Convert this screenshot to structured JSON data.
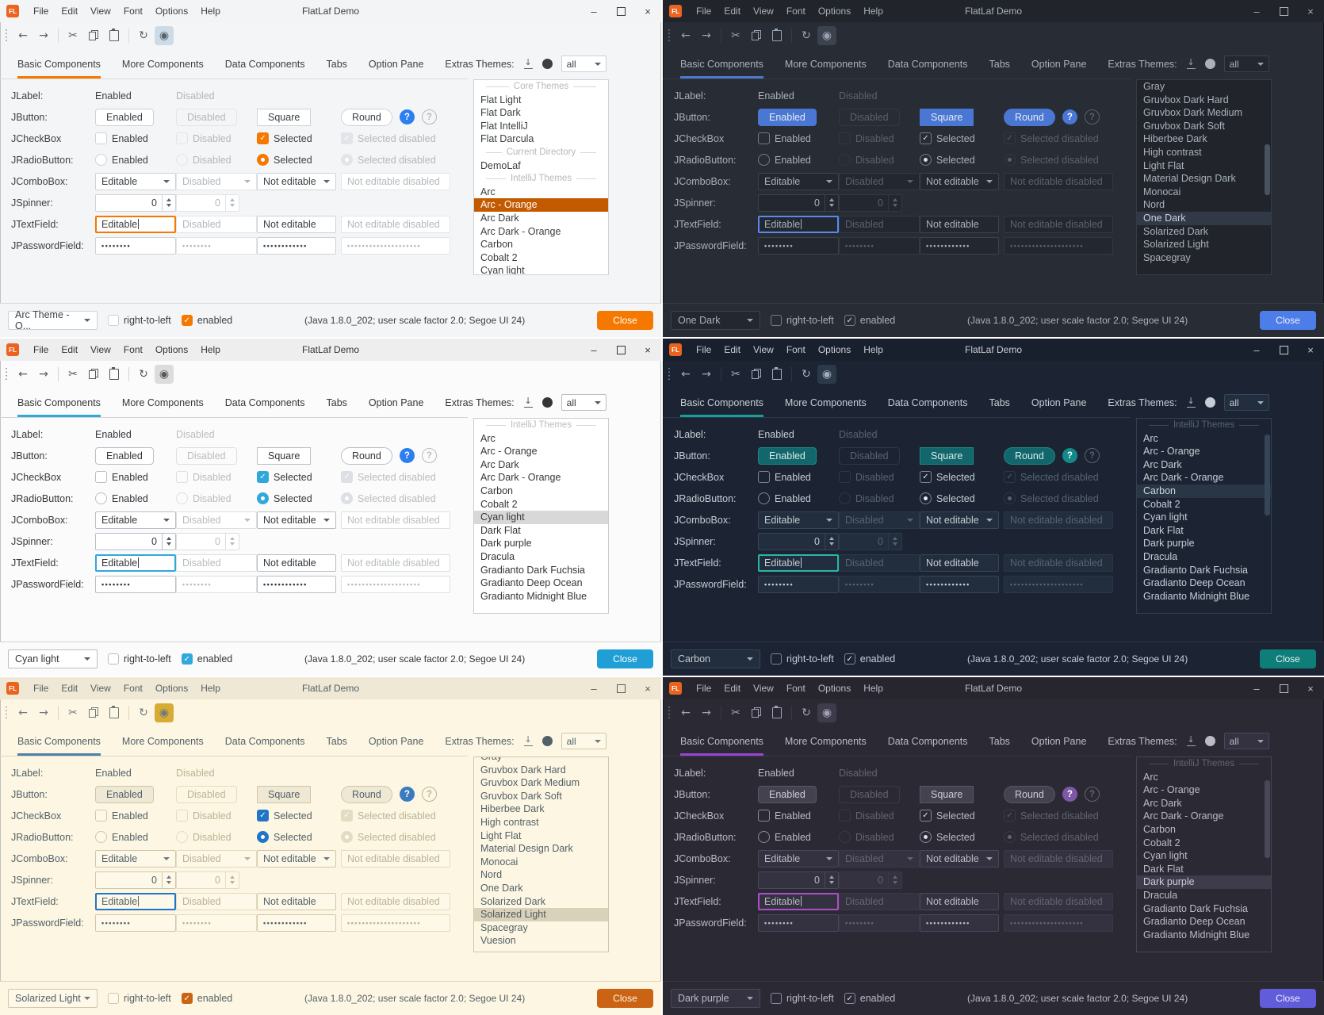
{
  "shared": {
    "title": "FlatLaf Demo",
    "logo": "FL",
    "menus": [
      "File",
      "Edit",
      "View",
      "Font",
      "Options",
      "Help"
    ],
    "window_controls": {
      "minimize": "–",
      "close": "×"
    },
    "toolbar_icons": [
      "back",
      "forward",
      "cut",
      "copy",
      "paste",
      "refresh",
      "show"
    ],
    "glyphs": {
      "back": "←",
      "forward": "→",
      "cut": "✂",
      "refresh": "↻",
      "eye": "◉",
      "download_arrow": "↓"
    },
    "tabs": [
      "Basic Components",
      "More Components",
      "Data Components",
      "Tabs",
      "Option Pane",
      "Extras"
    ],
    "selected_tab": "Basic Components",
    "themes_label": "Themes:",
    "themes_filter": "all",
    "row_labels": {
      "jlabel": "JLabel:",
      "jbutton": "JButton:",
      "jcheckbox": "JCheckBox",
      "jradiobutton": "JRadioButton:",
      "jcombobox": "JComboBox:",
      "jspinner": "JSpinner:",
      "jtextfield": "JTextField:",
      "jpasswordfield": "JPasswordField:"
    },
    "strings": {
      "enabled": "Enabled",
      "disabled": "Disabled",
      "square": "Square",
      "round": "Round",
      "help": "?",
      "selected": "Selected",
      "selected_disabled": "Selected disabled",
      "editable": "Editable",
      "not_editable": "Not editable",
      "not_editable_disabled": "Not editable disabled",
      "zero": "0",
      "dots8": "••••••••",
      "dots12": "••••••••••••",
      "dots20": "••••••••••••••••••••"
    },
    "statusbar": {
      "rtl": "right-to-left",
      "enabled": "enabled",
      "status": "(Java 1.8.0_202;  user scale factor 2.0;  Segoe UI 24)",
      "close": "Close"
    }
  },
  "panels": [
    {
      "id": "arc-orange",
      "mode": "light",
      "accent_buttons": false,
      "theme_combo": "Arc Theme - O...",
      "list_clipped_top": false,
      "scrollbar": null,
      "list": [
        {
          "type": "header",
          "label": "Core Themes"
        },
        {
          "type": "item",
          "label": "Flat Light"
        },
        {
          "type": "item",
          "label": "Flat Dark"
        },
        {
          "type": "item",
          "label": "Flat IntelliJ"
        },
        {
          "type": "item",
          "label": "Flat Darcula"
        },
        {
          "type": "header",
          "label": "Current Directory"
        },
        {
          "type": "item",
          "label": "DemoLaf"
        },
        {
          "type": "header",
          "label": "IntelliJ Themes"
        },
        {
          "type": "item",
          "label": "Arc"
        },
        {
          "type": "item",
          "label": "Arc - Orange",
          "selected": true
        },
        {
          "type": "item",
          "label": "Arc Dark"
        },
        {
          "type": "item",
          "label": "Arc Dark - Orange"
        },
        {
          "type": "item",
          "label": "Carbon"
        },
        {
          "type": "item",
          "label": "Cobalt 2"
        },
        {
          "type": "item",
          "label": "Cyan light"
        }
      ],
      "colors": {
        "bg": "#f4f5f6",
        "titlebar": "#f3f4f5",
        "text": "#3c4043",
        "muted": "#b4b8bc",
        "sep": "#d7dadd",
        "field_bg": "#ffffff",
        "field_border": "#cdd2d8",
        "disabled_border": "#e1e5e9",
        "btn_bg": "#ffffff",
        "btn_border": "#cdd2d8",
        "primary_bg": "#ffffff",
        "primary_border": "#cdd2d8",
        "primary_text": "#3c4043",
        "accent": "#f57900",
        "focus": "#f57900",
        "check": "#f57900",
        "check_outline": "#cdd2d8",
        "check_mark": "#ffffff",
        "help": "#2d7ff0",
        "sel_bg": "#c45a00",
        "sel_text": "#ffffff",
        "close": "#f57900",
        "close_text": "#ffffff",
        "eye_bg": "#ccdbe8",
        "icon": "#5b6269",
        "enabled_check": "#f57900",
        "list_bg": "#ffffff",
        "list_border": "#cdd2d8",
        "thumb": "#c9ced4"
      }
    },
    {
      "id": "one-dark",
      "mode": "dark",
      "accent_buttons": true,
      "theme_combo": "One Dark",
      "list_clipped_top": false,
      "scrollbar": {
        "top_pct": 33,
        "height_pct": 26
      },
      "list": [
        {
          "type": "item",
          "label": "Gray"
        },
        {
          "type": "item",
          "label": "Gruvbox Dark Hard"
        },
        {
          "type": "item",
          "label": "Gruvbox Dark Medium"
        },
        {
          "type": "item",
          "label": "Gruvbox Dark Soft"
        },
        {
          "type": "item",
          "label": "Hiberbee Dark"
        },
        {
          "type": "item",
          "label": "High contrast"
        },
        {
          "type": "item",
          "label": "Light Flat"
        },
        {
          "type": "item",
          "label": "Material Design Dark"
        },
        {
          "type": "item",
          "label": "Monocai"
        },
        {
          "type": "item",
          "label": "Nord"
        },
        {
          "type": "item",
          "label": "One Dark",
          "selected": true
        },
        {
          "type": "item",
          "label": "Solarized Dark"
        },
        {
          "type": "item",
          "label": "Solarized Light"
        },
        {
          "type": "item",
          "label": "Spacegray"
        }
      ],
      "colors": {
        "bg": "#282c34",
        "titlebar": "#21252b",
        "text": "#a9b1bd",
        "muted": "#5a626e",
        "sep": "#373c44",
        "field_bg": "#23272f",
        "field_border": "#3c424c",
        "disabled_border": "#323842",
        "btn_bg": "#23272f",
        "btn_border": "#3c424c",
        "primary_bg": "#4a77d4",
        "primary_border": "#4a77d4",
        "primary_text": "#e8ecf2",
        "accent": "#4d78cc",
        "focus": "#568af2",
        "check": "#4d78cc",
        "check_outline": "#747c88",
        "check_mark": "#d7dde6",
        "help": "#4a77d4",
        "sel_bg": "#323946",
        "sel_text": "#c7cedb",
        "close": "#4d7de8",
        "close_text": "#f0f3f8",
        "eye_bg": "#3d434e",
        "icon": "#9aa2b0",
        "enabled_check": "#4d78cc",
        "list_bg": "#21252b",
        "list_border": "#363c45",
        "thumb": "#4a5160"
      }
    },
    {
      "id": "cyan-light",
      "mode": "light",
      "accent_buttons": false,
      "theme_combo": "Cyan light",
      "list_clipped_top": false,
      "scrollbar": null,
      "list": [
        {
          "type": "header",
          "label": "IntelliJ Themes"
        },
        {
          "type": "item",
          "label": "Arc"
        },
        {
          "type": "item",
          "label": "Arc - Orange"
        },
        {
          "type": "item",
          "label": "Arc Dark"
        },
        {
          "type": "item",
          "label": "Arc Dark - Orange"
        },
        {
          "type": "item",
          "label": "Carbon"
        },
        {
          "type": "item",
          "label": "Cobalt 2"
        },
        {
          "type": "item",
          "label": "Cyan light",
          "selected": true
        },
        {
          "type": "item",
          "label": "Dark Flat"
        },
        {
          "type": "item",
          "label": "Dark purple"
        },
        {
          "type": "item",
          "label": "Dracula"
        },
        {
          "type": "item",
          "label": "Gradianto Dark Fuchsia"
        },
        {
          "type": "item",
          "label": "Gradianto Deep Ocean"
        },
        {
          "type": "item",
          "label": "Gradianto Midnight Blue"
        }
      ],
      "colors": {
        "bg": "#fbfbfb",
        "titlebar": "#eeeeee",
        "text": "#333639",
        "muted": "#b9bcbf",
        "sep": "#d4d4d4",
        "field_bg": "#ffffff",
        "field_border": "#b9bfc6",
        "disabled_border": "#dcdfe3",
        "btn_bg": "#ffffff",
        "btn_border": "#b9bfc6",
        "primary_bg": "#ffffff",
        "primary_border": "#b9bfc6",
        "primary_text": "#333639",
        "accent": "#2fa8dc",
        "focus": "#2fa8dc",
        "check": "#2fa8dc",
        "check_outline": "#b9bfc6",
        "check_mark": "#ffffff",
        "help": "#2d7ff0",
        "sel_bg": "#d8d8d8",
        "sel_text": "#333639",
        "close": "#1f9fd6",
        "close_text": "#ffffff",
        "eye_bg": "#dcdcdc",
        "icon": "#55595e",
        "enabled_check": "#2fa8dc",
        "list_bg": "#ffffff",
        "list_border": "#c9ccd0",
        "thumb": "#cccccc"
      }
    },
    {
      "id": "carbon",
      "mode": "dark",
      "accent_buttons": true,
      "theme_combo": "Carbon",
      "list_clipped_top": false,
      "scrollbar": {
        "top_pct": 8,
        "height_pct": 42
      },
      "list": [
        {
          "type": "header",
          "label": "IntelliJ Themes"
        },
        {
          "type": "item",
          "label": "Arc"
        },
        {
          "type": "item",
          "label": "Arc - Orange"
        },
        {
          "type": "item",
          "label": "Arc Dark"
        },
        {
          "type": "item",
          "label": "Arc Dark - Orange"
        },
        {
          "type": "item",
          "label": "Carbon",
          "selected": true
        },
        {
          "type": "item",
          "label": "Cobalt 2"
        },
        {
          "type": "item",
          "label": "Cyan light"
        },
        {
          "type": "item",
          "label": "Dark Flat"
        },
        {
          "type": "item",
          "label": "Dark purple"
        },
        {
          "type": "item",
          "label": "Dracula"
        },
        {
          "type": "item",
          "label": "Gradianto Dark Fuchsia"
        },
        {
          "type": "item",
          "label": "Gradianto Deep Ocean"
        },
        {
          "type": "item",
          "label": "Gradianto Midnight Blue"
        }
      ],
      "colors": {
        "bg": "#1c2433",
        "titlebar": "#19202d",
        "text": "#c6cdd6",
        "muted": "#576372",
        "sep": "#2b3747",
        "field_bg": "#222d3d",
        "field_border": "#35455a",
        "disabled_border": "#2b3848",
        "btn_bg": "#222d3d",
        "btn_border": "#35455a",
        "primary_bg": "#11676b",
        "primary_border": "#1c8a84",
        "primary_text": "#dce8e8",
        "accent": "#16a09a",
        "focus": "#29b6aa",
        "check": "#16a09a",
        "check_outline": "#7b8694",
        "check_mark": "#e6ecf2",
        "help": "#138a8a",
        "sel_bg": "#293645",
        "sel_text": "#cdd5de",
        "close": "#0f7e79",
        "close_text": "#e8f2f1",
        "eye_bg": "#2b3949",
        "icon": "#a3aebb",
        "enabled_check": "#16a09a",
        "list_bg": "#1c2433",
        "list_border": "#314050",
        "thumb": "#374656"
      }
    },
    {
      "id": "solarized-light",
      "mode": "light",
      "accent_buttons": false,
      "theme_combo": "Solarized Light",
      "list_clipped_top": true,
      "scrollbar": null,
      "list": [
        {
          "type": "item",
          "label": "Gray"
        },
        {
          "type": "item",
          "label": "Gruvbox Dark Hard"
        },
        {
          "type": "item",
          "label": "Gruvbox Dark Medium"
        },
        {
          "type": "item",
          "label": "Gruvbox Dark Soft"
        },
        {
          "type": "item",
          "label": "Hiberbee Dark"
        },
        {
          "type": "item",
          "label": "High contrast"
        },
        {
          "type": "item",
          "label": "Light Flat"
        },
        {
          "type": "item",
          "label": "Material Design Dark"
        },
        {
          "type": "item",
          "label": "Monocai"
        },
        {
          "type": "item",
          "label": "Nord"
        },
        {
          "type": "item",
          "label": "One Dark"
        },
        {
          "type": "item",
          "label": "Solarized Dark"
        },
        {
          "type": "item",
          "label": "Solarized Light",
          "selected": true
        },
        {
          "type": "item",
          "label": "Spacegray"
        },
        {
          "type": "item",
          "label": "Vuesion"
        }
      ],
      "colors": {
        "bg": "#fdf6e3",
        "titlebar": "#eee8d5",
        "text": "#536166",
        "muted": "#bcb394",
        "sep": "#ddd5bc",
        "field_bg": "#fdf8e8",
        "field_border": "#d2c8a8",
        "disabled_border": "#e4dcc2",
        "btn_bg": "#eee8d5",
        "btn_border": "#cfc6a8",
        "primary_bg": "#eee8d5",
        "primary_border": "#cfc6a8",
        "primary_text": "#536166",
        "accent": "#4e81a8",
        "focus": "#2075c7",
        "check": "#2075c7",
        "check_outline": "#d2c8a8",
        "check_mark": "#ffffff",
        "help": "#3a7bbf",
        "sel_bg": "#d9d2ba",
        "sel_text": "#50575a",
        "close": "#ca6414",
        "close_text": "#fdf6e3",
        "eye_bg": "#d8ab35",
        "icon": "#6f7a7c",
        "enabled_check": "#ca6414",
        "list_bg": "#fdf6e3",
        "list_border": "#d0c7a8",
        "thumb": "#d5ccae"
      }
    },
    {
      "id": "dark-purple",
      "mode": "dark",
      "accent_buttons": true,
      "theme_combo": "Dark purple",
      "list_clipped_top": false,
      "scrollbar": {
        "top_pct": 12,
        "height_pct": 40
      },
      "list": [
        {
          "type": "header",
          "label": "IntelliJ Themes"
        },
        {
          "type": "item",
          "label": "Arc"
        },
        {
          "type": "item",
          "label": "Arc - Orange"
        },
        {
          "type": "item",
          "label": "Arc Dark"
        },
        {
          "type": "item",
          "label": "Arc Dark - Orange"
        },
        {
          "type": "item",
          "label": "Carbon"
        },
        {
          "type": "item",
          "label": "Cobalt 2"
        },
        {
          "type": "item",
          "label": "Cyan light"
        },
        {
          "type": "item",
          "label": "Dark Flat"
        },
        {
          "type": "item",
          "label": "Dark purple",
          "selected": true
        },
        {
          "type": "item",
          "label": "Dracula"
        },
        {
          "type": "item",
          "label": "Gradianto Dark Fuchsia"
        },
        {
          "type": "item",
          "label": "Gradianto Deep Ocean"
        },
        {
          "type": "item",
          "label": "Gradianto Midnight Blue"
        }
      ],
      "colors": {
        "bg": "#2b2a34",
        "titlebar": "#27262f",
        "text": "#bdb9c6",
        "muted": "#676272",
        "sep": "#3b3846",
        "field_bg": "#343240",
        "field_border": "#4b4759",
        "disabled_border": "#3b3847",
        "btn_bg": "#343240",
        "btn_border": "#4b4759",
        "primary_bg": "#454250",
        "primary_border": "#5a5568",
        "primary_text": "#cfcbda",
        "accent": "#9a44d2",
        "focus": "#ab4fc8",
        "check": "#9a44d2",
        "check_outline": "#8d87a0",
        "check_mark": "#e2def0",
        "help": "#7e57a8",
        "sel_bg": "#3e3b4b",
        "sel_text": "#cfcbdd",
        "close": "#615cda",
        "close_text": "#edecf8",
        "eye_bg": "#3e3b4a",
        "icon": "#a59fb4",
        "enabled_check": "#9a44d2",
        "list_bg": "#2b2a34",
        "list_border": "#474354",
        "thumb": "#4b4759"
      }
    }
  ]
}
